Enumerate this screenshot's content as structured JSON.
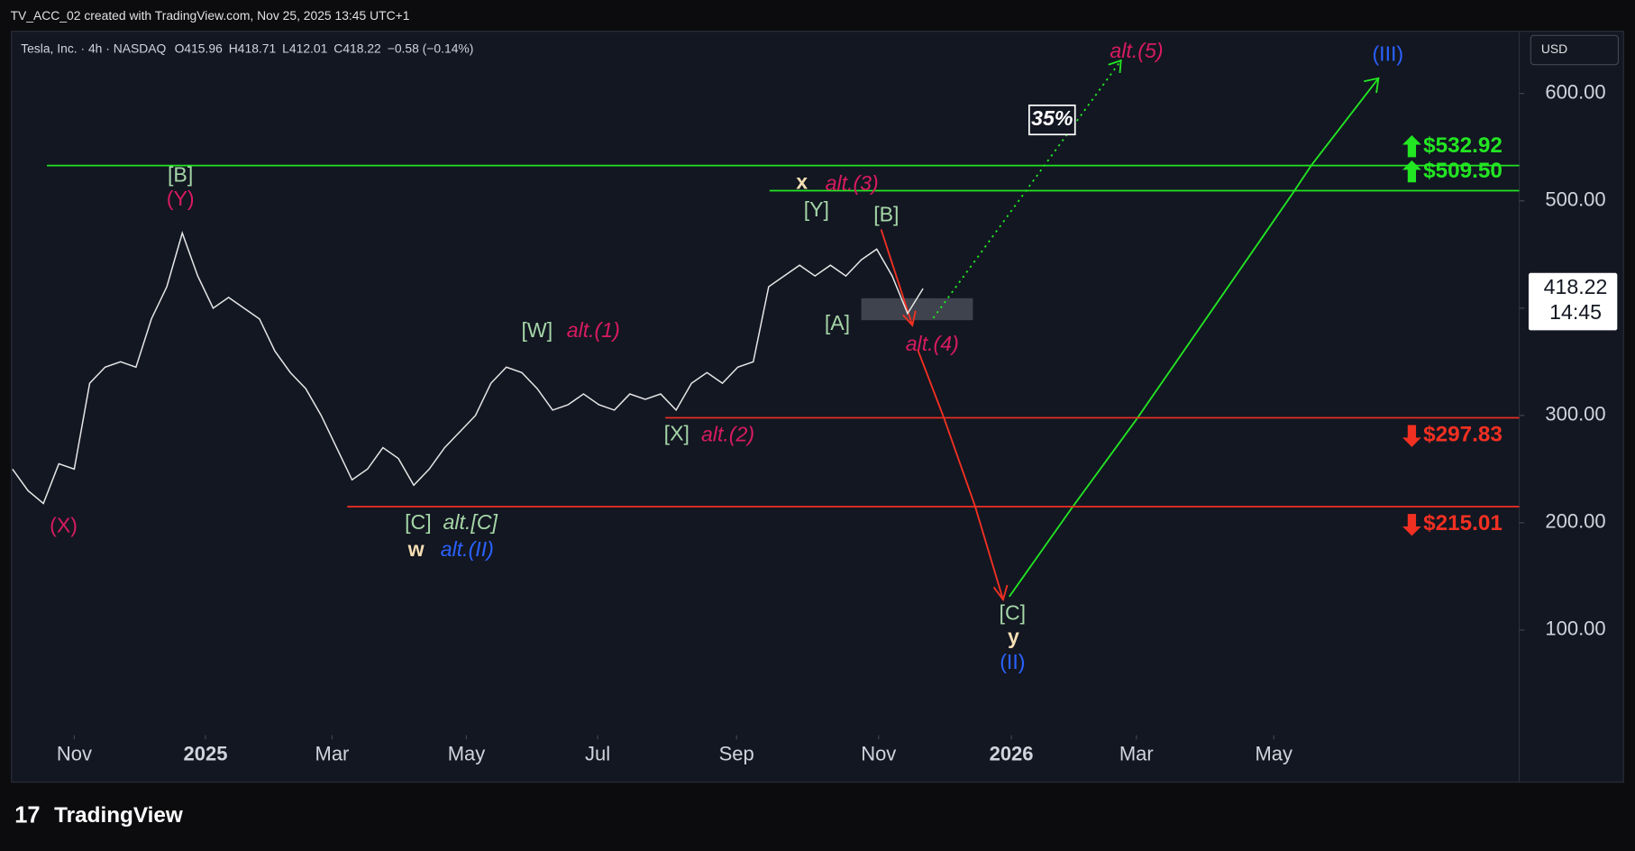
{
  "header": {
    "created": "TV_ACC_02 created with TradingView.com, Nov 25, 2025 13:45 UTC+1",
    "symbol": "Tesla, Inc. · 4h · NASDAQ",
    "ohlc": [
      {
        "label": "O",
        "value": 415.96
      },
      {
        "label": "H",
        "value": 418.71
      },
      {
        "label": "L",
        "value": 412.01
      },
      {
        "label": "C",
        "value": 418.22
      }
    ],
    "change": "−0.58 (−0.14%)",
    "currency": "USD"
  },
  "footer": {
    "logo": "TradingView"
  },
  "chart_data": {
    "type": "line",
    "color": "#e6e6e6",
    "values": [
      250,
      230,
      218,
      255,
      250,
      330,
      345,
      350,
      345,
      390,
      420,
      470,
      430,
      400,
      410,
      400,
      390,
      360,
      340,
      325,
      300,
      270,
      240,
      250,
      270,
      260,
      235,
      250,
      270,
      285,
      300,
      330,
      345,
      340,
      325,
      305,
      310,
      320,
      310,
      305,
      320,
      315,
      320,
      305,
      330,
      340,
      330,
      345,
      350,
      420,
      430,
      440,
      430,
      440,
      430,
      445,
      455,
      430,
      395,
      418.22
    ],
    "last_price": 418.22,
    "last_time": "14:45",
    "xlim": [
      0,
      97.6
    ],
    "xticks": [
      {
        "value": 4,
        "label": "Nov"
      },
      {
        "value": 12.5,
        "label": "2025"
      },
      {
        "value": 20.7,
        "label": "Mar"
      },
      {
        "value": 29.4,
        "label": "May"
      },
      {
        "value": 37.9,
        "label": "Jul"
      },
      {
        "value": 46.9,
        "label": "Sep"
      },
      {
        "value": 56.1,
        "label": "Nov"
      },
      {
        "value": 64.7,
        "label": "2026"
      },
      {
        "value": 72.8,
        "label": "Mar"
      },
      {
        "value": 81.7,
        "label": "May"
      }
    ],
    "ylim": [
      2,
      658
    ],
    "yticks": [
      {
        "value": 100,
        "label": "100.00"
      },
      {
        "value": 200,
        "label": "200.00"
      },
      {
        "value": 300,
        "label": "300.00"
      },
      {
        "value": 400,
        "label": "400.00"
      },
      {
        "value": 500,
        "label": "500.00"
      },
      {
        "value": 600,
        "label": "600.00"
      }
    ],
    "levels": [
      {
        "value": 532.92,
        "label": "$532.92",
        "color": "#22e622"
      },
      {
        "value": 509.5,
        "label": "$509.50",
        "color": "#22e622"
      },
      {
        "value": 297.83,
        "label": "$297.83",
        "color": "#f23022"
      },
      {
        "value": 215.01,
        "label": "$215.01",
        "color": "#f23022"
      }
    ],
    "annotations": [
      {
        "text": "[B]",
        "color": "#a5d6a7"
      },
      {
        "text": "(Y)",
        "color": "#d81b60"
      },
      {
        "text": "(X)",
        "color": "#d81b60"
      },
      {
        "text": "[C]",
        "color": "#a5d6a7"
      },
      {
        "text": "alt.[C]",
        "color": "#a5d6a7"
      },
      {
        "text": "w",
        "color": "#f5deb3"
      },
      {
        "text": "alt.(II)",
        "color": "#2962ff"
      },
      {
        "text": "[W]",
        "color": "#a5d6a7"
      },
      {
        "text": "alt.(1)",
        "color": "#d81b60"
      },
      {
        "text": "[X]",
        "color": "#a5d6a7"
      },
      {
        "text": "alt.(2)",
        "color": "#d81b60"
      },
      {
        "text": "x",
        "color": "#f5deb3"
      },
      {
        "text": "alt.(3)",
        "color": "#d81b60"
      },
      {
        "text": "[Y]",
        "color": "#a5d6a7"
      },
      {
        "text": "[B]",
        "color": "#a5d6a7"
      },
      {
        "text": "[A]",
        "color": "#a5d6a7"
      },
      {
        "text": "alt.(4)",
        "color": "#d81b60"
      },
      {
        "text": "alt.(5)",
        "color": "#d81b60"
      },
      {
        "text": "(III)",
        "color": "#2962ff"
      },
      {
        "text": "[C]",
        "color": "#a5d6a7"
      },
      {
        "text": "y",
        "color": "#f5deb3"
      },
      {
        "text": "(II)",
        "color": "#2962ff"
      },
      {
        "text": "35%",
        "color": "#ffffff"
      }
    ]
  }
}
